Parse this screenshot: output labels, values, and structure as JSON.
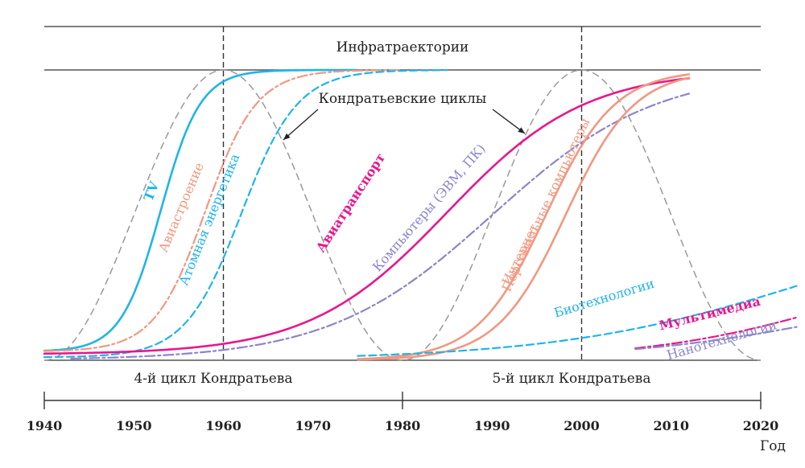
{
  "chart_data": {
    "type": "line",
    "title": "Инфратраектории",
    "x_axis": {
      "range": [
        1940,
        2020
      ],
      "ticks": [
        "1940",
        "1950",
        "1960",
        "1970",
        "1980",
        "1990",
        "2000",
        "2010",
        "2020"
      ],
      "unit_label": "Год"
    },
    "cycles": [
      {
        "name": "4-й цикл Кондратьева",
        "from": 1940,
        "to": 1980
      },
      {
        "name": "5-й цикл Кондратьева",
        "from": 1980,
        "to": 2020
      }
    ],
    "cycle_boundaries": [
      1960,
      2000
    ],
    "cycles_annotation": "Кондратьевские циклы",
    "series": [
      {
        "name": "TV",
        "color": "#1fb4ea",
        "style": "solid",
        "x0": 1940,
        "x1": 1975,
        "mid": 1953,
        "k": 0.45,
        "y0": 0.03,
        "y1": 1.0
      },
      {
        "name": "Авиастроение",
        "color": "#f19880",
        "style": "dashdot",
        "x0": 1940,
        "x1": 1980,
        "mid": 1958,
        "k": 0.35,
        "y0": 0.03,
        "y1": 1.0
      },
      {
        "name": "Атомная энергетика",
        "color": "#1fb4ea",
        "style": "dashed",
        "x0": 1940,
        "x1": 1985,
        "mid": 1962,
        "k": 0.32,
        "y0": 0.01,
        "y1": 1.0
      },
      {
        "name": "Авиатранспорт",
        "color": "#e9168d",
        "style": "solid",
        "x0": 1940,
        "x1": 2012,
        "mid": 1985,
        "k": 0.13,
        "y0": 0.02,
        "y1": 1.0
      },
      {
        "name": "Компьютеры (ЭВМ, ПК)",
        "color": "#8b84cc",
        "style": "dashdot",
        "x0": 1943,
        "x1": 2012,
        "mid": 1990,
        "k": 0.11,
        "y0": 0.0,
        "y1": 1.0
      },
      {
        "name": "Персональные компьютеры",
        "color": "#f19880",
        "style": "solid",
        "x0": 1975,
        "x1": 2012,
        "mid": 1996,
        "k": 0.26,
        "y0": 0.0,
        "y1": 1.0
      },
      {
        "name": "Интернет",
        "color": "#f19880",
        "style": "solid",
        "x0": 1975,
        "x1": 2012,
        "mid": 1996,
        "k": 0.26,
        "y0": 0.0,
        "y1": 1.0
      },
      {
        "name": "Биотехнологии",
        "color": "#1fb4ea",
        "style": "dashed",
        "x0": 1975,
        "x1": 2024,
        "mid": 2026,
        "k": 0.07,
        "y0": 0.0,
        "y1": 0.55
      },
      {
        "name": "Мультимедиа",
        "color": "#e9168d",
        "style": "dashdot",
        "x0": 2006,
        "x1": 2024,
        "mid": 2030,
        "k": 0.09,
        "y0": 0.0,
        "y1": 0.4
      },
      {
        "name": "Нанотехнологии",
        "color": "#8b84cc",
        "style": "dashdot",
        "x0": 2006,
        "x1": 2024,
        "mid": 2030,
        "k": 0.08,
        "y0": 0.0,
        "y1": 0.3
      }
    ],
    "wave": {
      "name": "Кондратьевские циклы",
      "color": "#999999",
      "style": "dashed",
      "period": 40,
      "peak": 1960
    }
  }
}
